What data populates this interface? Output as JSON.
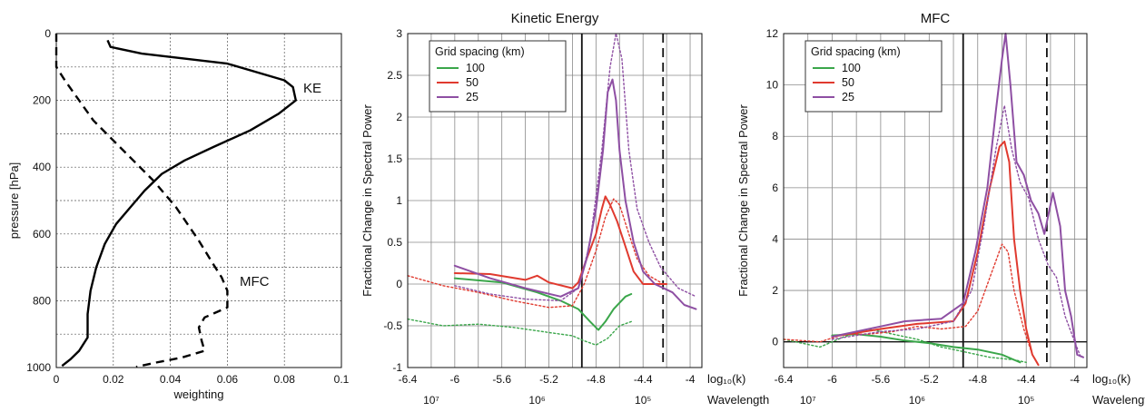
{
  "chart_data": [
    {
      "type": "line",
      "title": "",
      "xlabel": "weighting",
      "ylabel": "pressure [hPa]",
      "xlim": [
        0,
        0.1
      ],
      "ylim": [
        1000,
        0
      ],
      "xticks": [
        "0",
        "0.02",
        "0.04",
        "0.06",
        "0.08",
        "0.1"
      ],
      "yticks": [
        "0",
        "200",
        "400",
        "600",
        "800",
        "1000"
      ],
      "grid": true,
      "annotations": [
        "KE",
        "MFC"
      ],
      "series": [
        {
          "name": "KE",
          "style": "solid",
          "color": "#000000",
          "points": [
            [
              0.018,
              20
            ],
            [
              0.019,
              40
            ],
            [
              0.03,
              60
            ],
            [
              0.06,
              90
            ],
            [
              0.08,
              140
            ],
            [
              0.083,
              160
            ],
            [
              0.084,
              200
            ],
            [
              0.078,
              240
            ],
            [
              0.068,
              290
            ],
            [
              0.055,
              340
            ],
            [
              0.045,
              380
            ],
            [
              0.037,
              420
            ],
            [
              0.031,
              470
            ],
            [
              0.026,
              520
            ],
            [
              0.021,
              570
            ],
            [
              0.017,
              630
            ],
            [
              0.014,
              700
            ],
            [
              0.012,
              770
            ],
            [
              0.011,
              840
            ],
            [
              0.011,
              910
            ],
            [
              0.008,
              950
            ],
            [
              0.005,
              975
            ],
            [
              0.002,
              995
            ]
          ]
        },
        {
          "name": "MFC",
          "style": "dashed",
          "color": "#000000",
          "points": [
            [
              0,
              0
            ],
            [
              0,
              100
            ],
            [
              0.003,
              140
            ],
            [
              0.008,
              200
            ],
            [
              0.013,
              260
            ],
            [
              0.02,
              320
            ],
            [
              0.027,
              380
            ],
            [
              0.034,
              440
            ],
            [
              0.042,
              520
            ],
            [
              0.05,
              620
            ],
            [
              0.055,
              690
            ],
            [
              0.058,
              730
            ],
            [
              0.06,
              770
            ],
            [
              0.06,
              820
            ],
            [
              0.052,
              850
            ],
            [
              0.05,
              880
            ],
            [
              0.051,
              920
            ],
            [
              0.052,
              950
            ],
            [
              0.044,
              970
            ],
            [
              0.035,
              985
            ],
            [
              0.028,
              998
            ]
          ]
        }
      ]
    },
    {
      "type": "line",
      "title": "Kinetic Energy",
      "xlabel": "log₁₀(k)",
      "ylabel": "Fractional Change in Spectral Power",
      "xlim": [
        -6.4,
        -3.9
      ],
      "ylim": [
        -1,
        3
      ],
      "xticks": [
        "-6.4",
        "-6",
        "-5.6",
        "-5.2",
        "-4.8",
        "-4.4",
        "-4"
      ],
      "yticks": [
        "-1",
        "-0.5",
        "0",
        "0.5",
        "1",
        "1.5",
        "2",
        "2.5",
        "3"
      ],
      "wavelength_label": "Wavelength",
      "wavelength_ticks": [
        "10⁷",
        "10⁶",
        "10⁵"
      ],
      "wavelength_tick_positions": [
        -6.2,
        -5.3,
        -4.4
      ],
      "vlines": [
        {
          "x": -4.92,
          "style": "solid"
        },
        {
          "x": -4.23,
          "style": "dashed"
        }
      ],
      "legend": {
        "title": "Grid spacing (km)",
        "position": "top-left",
        "entries": [
          "100",
          "50",
          "25"
        ]
      },
      "series": [
        {
          "name": "100",
          "color": "#3aa64a",
          "points": [
            [
              -6,
              0.07
            ],
            [
              -5.6,
              0.02
            ],
            [
              -5.3,
              -0.1
            ],
            [
              -5.1,
              -0.2
            ],
            [
              -4.95,
              -0.3
            ],
            [
              -4.85,
              -0.45
            ],
            [
              -4.78,
              -0.55
            ],
            [
              -4.72,
              -0.45
            ],
            [
              -4.65,
              -0.3
            ],
            [
              -4.55,
              -0.15
            ],
            [
              -4.5,
              -0.12
            ]
          ]
        },
        {
          "name": "100 (dotted)",
          "style": "dotted",
          "color": "#3aa64a",
          "points": [
            [
              -6.4,
              -0.42
            ],
            [
              -6.1,
              -0.5
            ],
            [
              -5.8,
              -0.48
            ],
            [
              -5.5,
              -0.52
            ],
            [
              -5.2,
              -0.58
            ],
            [
              -5.0,
              -0.62
            ],
            [
              -4.9,
              -0.68
            ],
            [
              -4.8,
              -0.73
            ],
            [
              -4.7,
              -0.65
            ],
            [
              -4.6,
              -0.5
            ],
            [
              -4.5,
              -0.45
            ]
          ]
        },
        {
          "name": "50",
          "color": "#e03a2f",
          "points": [
            [
              -6,
              0.13
            ],
            [
              -5.7,
              0.12
            ],
            [
              -5.4,
              0.05
            ],
            [
              -5.3,
              0.1
            ],
            [
              -5.2,
              0.02
            ],
            [
              -5.0,
              -0.05
            ],
            [
              -4.95,
              0.02
            ],
            [
              -4.88,
              0.3
            ],
            [
              -4.8,
              0.6
            ],
            [
              -4.75,
              0.9
            ],
            [
              -4.72,
              1.05
            ],
            [
              -4.68,
              0.95
            ],
            [
              -4.62,
              0.75
            ],
            [
              -4.55,
              0.45
            ],
            [
              -4.48,
              0.15
            ],
            [
              -4.4,
              0.0
            ],
            [
              -4.3,
              0.0
            ],
            [
              -4.2,
              0.0
            ]
          ]
        },
        {
          "name": "50 (dotted)",
          "style": "dotted",
          "color": "#e03a2f",
          "points": [
            [
              -6.4,
              0.1
            ],
            [
              -6.1,
              -0.02
            ],
            [
              -5.8,
              -0.1
            ],
            [
              -5.5,
              -0.2
            ],
            [
              -5.2,
              -0.28
            ],
            [
              -5.0,
              -0.26
            ],
            [
              -4.9,
              0.0
            ],
            [
              -4.8,
              0.4
            ],
            [
              -4.72,
              0.8
            ],
            [
              -4.65,
              1.02
            ],
            [
              -4.6,
              0.95
            ],
            [
              -4.52,
              0.6
            ],
            [
              -4.45,
              0.3
            ],
            [
              -4.35,
              0.1
            ],
            [
              -4.25,
              0.02
            ]
          ]
        },
        {
          "name": "25",
          "color": "#8e4fa3",
          "points": [
            [
              -6,
              0.22
            ],
            [
              -5.7,
              0.07
            ],
            [
              -5.4,
              -0.05
            ],
            [
              -5.1,
              -0.15
            ],
            [
              -4.95,
              -0.05
            ],
            [
              -4.88,
              0.3
            ],
            [
              -4.8,
              0.9
            ],
            [
              -4.74,
              1.6
            ],
            [
              -4.7,
              2.3
            ],
            [
              -4.66,
              2.45
            ],
            [
              -4.63,
              2.2
            ],
            [
              -4.6,
              1.6
            ],
            [
              -4.55,
              1.0
            ],
            [
              -4.48,
              0.5
            ],
            [
              -4.4,
              0.15
            ],
            [
              -4.3,
              0.0
            ],
            [
              -4.15,
              -0.1
            ],
            [
              -4.05,
              -0.25
            ],
            [
              -3.95,
              -0.3
            ]
          ]
        },
        {
          "name": "25 (dotted)",
          "style": "dotted",
          "color": "#8e4fa3",
          "points": [
            [
              -6,
              -0.02
            ],
            [
              -5.7,
              -0.12
            ],
            [
              -5.4,
              -0.18
            ],
            [
              -5.1,
              -0.2
            ],
            [
              -4.95,
              -0.05
            ],
            [
              -4.85,
              0.5
            ],
            [
              -4.75,
              1.6
            ],
            [
              -4.68,
              2.6
            ],
            [
              -4.63,
              3.0
            ],
            [
              -4.58,
              2.7
            ],
            [
              -4.52,
              1.6
            ],
            [
              -4.45,
              0.9
            ],
            [
              -4.35,
              0.5
            ],
            [
              -4.25,
              0.2
            ],
            [
              -4.1,
              -0.05
            ],
            [
              -3.95,
              -0.15
            ]
          ]
        }
      ]
    },
    {
      "type": "line",
      "title": "MFC",
      "xlabel": "log₁₀(k)",
      "ylabel": "Fractional Change in Spectral Power",
      "xlim": [
        -6.4,
        -3.9
      ],
      "ylim": [
        -1,
        12
      ],
      "xticks": [
        "-6.4",
        "-6",
        "-5.6",
        "-5.2",
        "-4.8",
        "-4.4",
        "-4"
      ],
      "yticks": [
        "0",
        "2",
        "4",
        "6",
        "8",
        "10",
        "12"
      ],
      "wavelength_label": "Wavelength",
      "wavelength_ticks": [
        "10⁷",
        "10⁶",
        "10⁵"
      ],
      "wavelength_tick_positions": [
        -6.2,
        -5.3,
        -4.4
      ],
      "vlines": [
        {
          "x": -4.92,
          "style": "solid"
        },
        {
          "x": -4.23,
          "style": "dashed"
        }
      ],
      "legend": {
        "title": "Grid spacing (km)",
        "position": "top-left",
        "entries": [
          "100",
          "50",
          "25"
        ]
      },
      "series": [
        {
          "name": "100",
          "color": "#3aa64a",
          "points": [
            [
              -6,
              0.25
            ],
            [
              -5.8,
              0.3
            ],
            [
              -5.6,
              0.2
            ],
            [
              -5.4,
              0.05
            ],
            [
              -5.2,
              -0.05
            ],
            [
              -5.0,
              -0.2
            ],
            [
              -4.8,
              -0.3
            ],
            [
              -4.6,
              -0.5
            ],
            [
              -4.5,
              -0.7
            ],
            [
              -4.45,
              -0.8
            ]
          ]
        },
        {
          "name": "100 (dotted)",
          "style": "dotted",
          "color": "#3aa64a",
          "points": [
            [
              -6.4,
              0.1
            ],
            [
              -6.1,
              -0.2
            ],
            [
              -5.9,
              0.2
            ],
            [
              -5.7,
              0.5
            ],
            [
              -5.5,
              0.3
            ],
            [
              -5.3,
              0.1
            ],
            [
              -5.1,
              -0.2
            ],
            [
              -4.9,
              -0.4
            ],
            [
              -4.7,
              -0.6
            ],
            [
              -4.5,
              -0.7
            ],
            [
              -4.4,
              -0.8
            ]
          ]
        },
        {
          "name": "50",
          "color": "#e03a2f",
          "points": [
            [
              -6,
              0.2
            ],
            [
              -5.6,
              0.5
            ],
            [
              -5.3,
              0.7
            ],
            [
              -5.0,
              0.8
            ],
            [
              -4.9,
              1.5
            ],
            [
              -4.8,
              3.5
            ],
            [
              -4.7,
              6.0
            ],
            [
              -4.62,
              7.6
            ],
            [
              -4.58,
              7.8
            ],
            [
              -4.54,
              7.0
            ],
            [
              -4.5,
              4.0
            ],
            [
              -4.45,
              2.0
            ],
            [
              -4.4,
              0.5
            ],
            [
              -4.35,
              -0.5
            ],
            [
              -4.3,
              -0.9
            ]
          ]
        },
        {
          "name": "50 (dotted)",
          "style": "dotted",
          "color": "#e03a2f",
          "points": [
            [
              -6.4,
              0.1
            ],
            [
              -6.1,
              0.0
            ],
            [
              -5.9,
              0.3
            ],
            [
              -5.7,
              0.3
            ],
            [
              -5.5,
              0.4
            ],
            [
              -5.3,
              0.6
            ],
            [
              -5.1,
              0.5
            ],
            [
              -4.9,
              0.6
            ],
            [
              -4.8,
              1.2
            ],
            [
              -4.7,
              2.5
            ],
            [
              -4.6,
              3.8
            ],
            [
              -4.55,
              3.5
            ],
            [
              -4.5,
              2.0
            ],
            [
              -4.42,
              0.5
            ],
            [
              -4.35,
              -0.5
            ]
          ]
        },
        {
          "name": "25",
          "color": "#8e4fa3",
          "points": [
            [
              -6,
              0.2
            ],
            [
              -5.6,
              0.6
            ],
            [
              -5.4,
              0.8
            ],
            [
              -5.1,
              0.9
            ],
            [
              -4.92,
              1.5
            ],
            [
              -4.82,
              3.5
            ],
            [
              -4.72,
              6.0
            ],
            [
              -4.65,
              9.0
            ],
            [
              -4.6,
              11.0
            ],
            [
              -4.57,
              12.0
            ],
            [
              -4.53,
              10.0
            ],
            [
              -4.48,
              7.0
            ],
            [
              -4.42,
              6.5
            ],
            [
              -4.36,
              5.5
            ],
            [
              -4.3,
              5.0
            ],
            [
              -4.25,
              4.2
            ],
            [
              -4.18,
              5.8
            ],
            [
              -4.12,
              4.5
            ],
            [
              -4.08,
              2.0
            ],
            [
              -4.03,
              1.0
            ],
            [
              -3.98,
              -0.5
            ],
            [
              -3.93,
              -0.6
            ]
          ]
        },
        {
          "name": "25 (dotted)",
          "style": "dotted",
          "color": "#8e4fa3",
          "points": [
            [
              -6,
              0.1
            ],
            [
              -5.6,
              0.4
            ],
            [
              -5.3,
              0.5
            ],
            [
              -5.0,
              0.8
            ],
            [
              -4.85,
              2.0
            ],
            [
              -4.75,
              4.5
            ],
            [
              -4.65,
              7.5
            ],
            [
              -4.58,
              9.2
            ],
            [
              -4.52,
              7.5
            ],
            [
              -4.45,
              6.2
            ],
            [
              -4.38,
              5.6
            ],
            [
              -4.3,
              4.0
            ],
            [
              -4.22,
              3.0
            ],
            [
              -4.15,
              2.5
            ],
            [
              -4.08,
              1.0
            ],
            [
              -4.0,
              0.0
            ],
            [
              -3.95,
              -0.6
            ]
          ]
        }
      ]
    }
  ]
}
